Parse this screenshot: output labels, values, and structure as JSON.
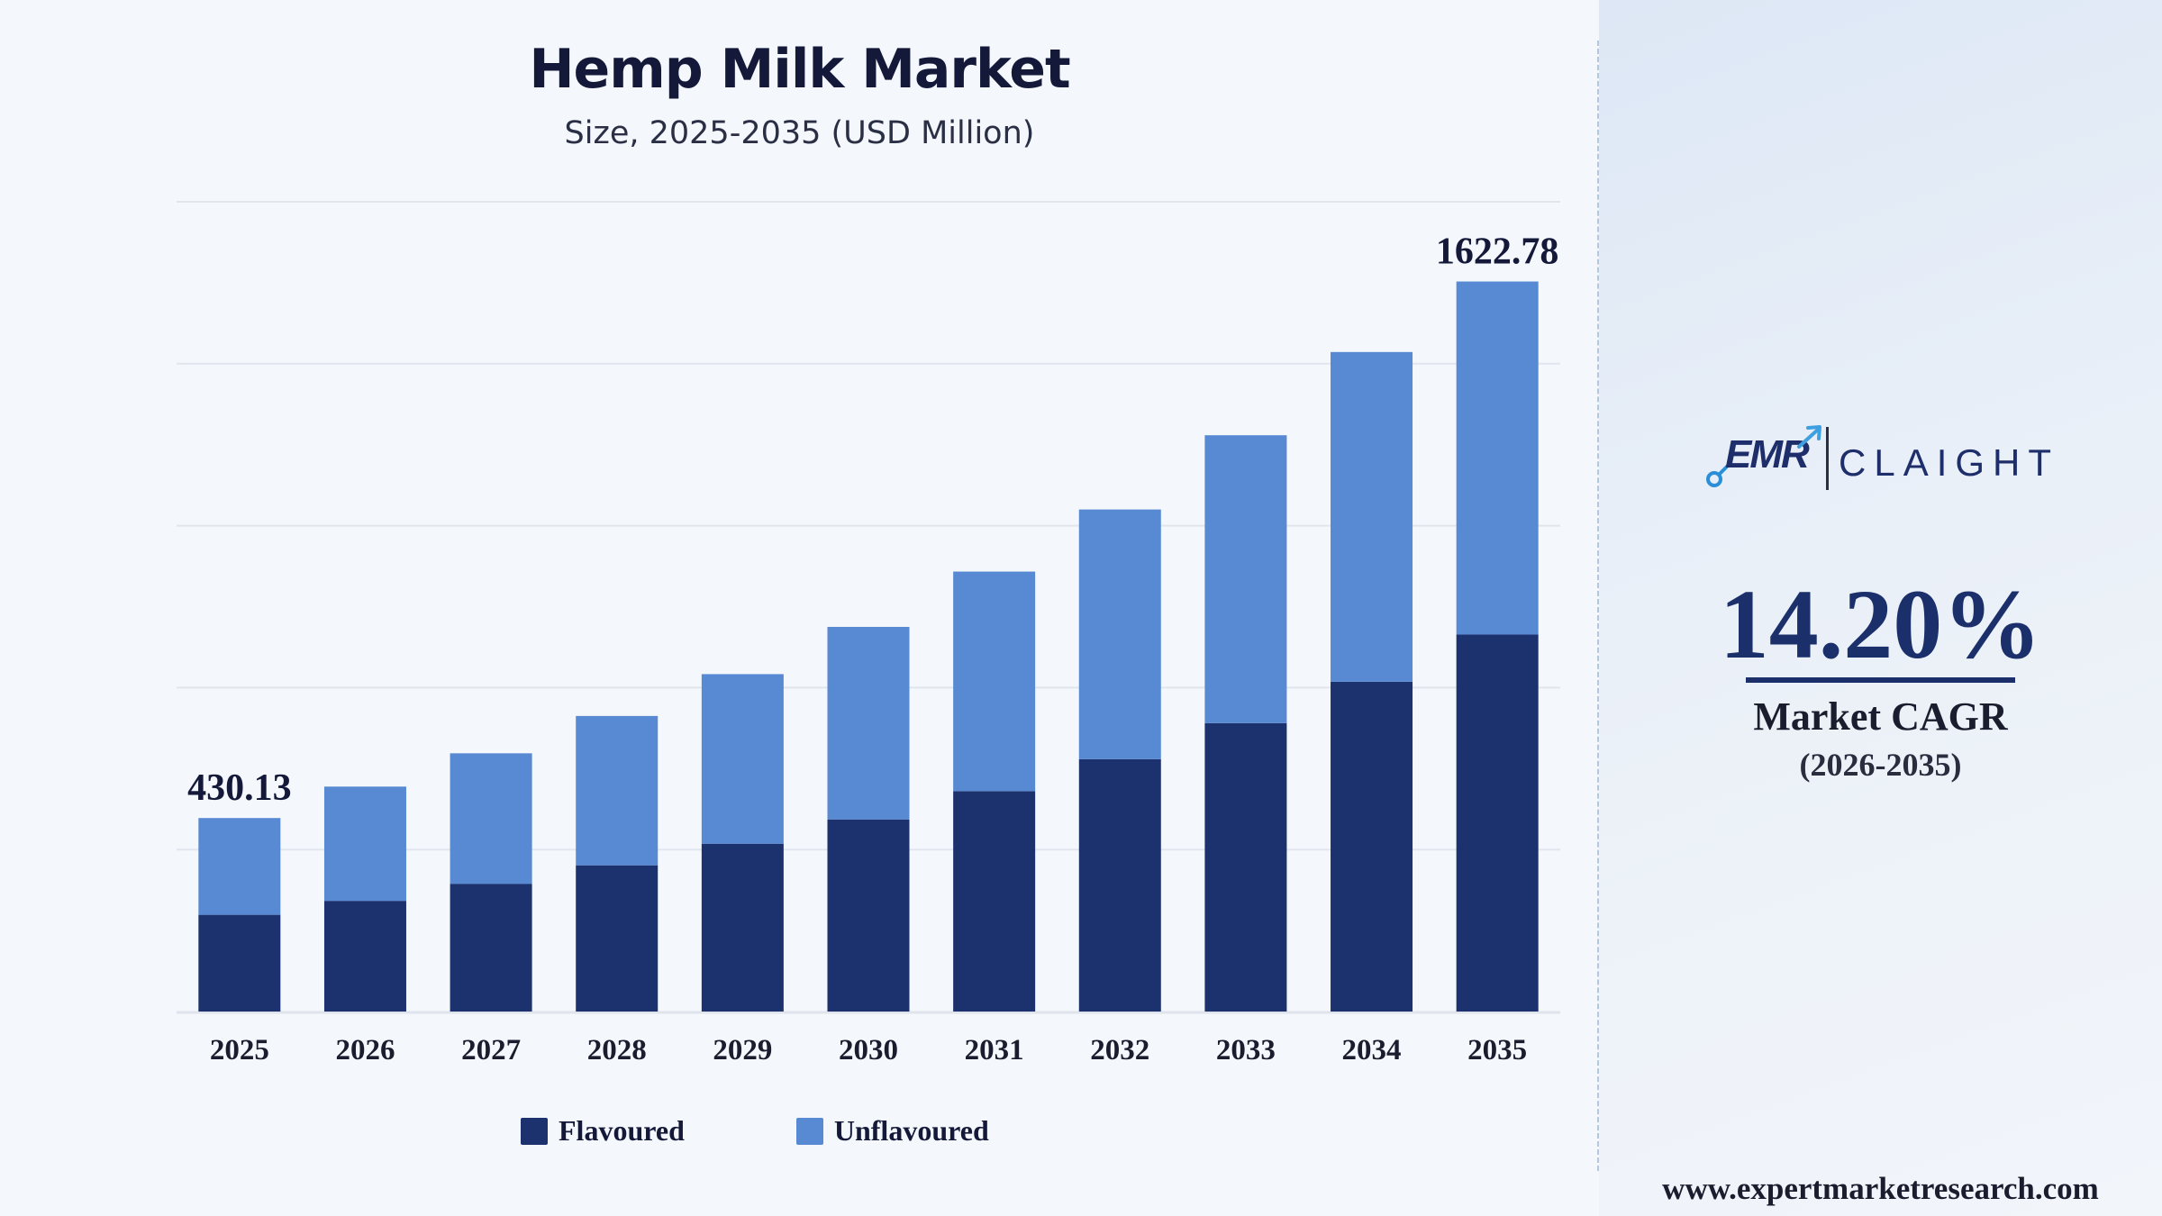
{
  "chart_data": {
    "type": "bar",
    "stacked": true,
    "title": "Hemp Milk Market",
    "subtitle": "Size, 2025-2035 (USD Million)",
    "categories": [
      "2025",
      "2026",
      "2027",
      "2028",
      "2029",
      "2030",
      "2031",
      "2032",
      "2033",
      "2034",
      "2035"
    ],
    "series": [
      {
        "name": "Flavoured",
        "color": "#1c326e",
        "values": [
          215,
          246,
          284,
          325,
          373,
          427,
          490,
          561,
          641,
          733,
          838
        ]
      },
      {
        "name": "Unflavoured",
        "color": "#5889d3",
        "values": [
          215.13,
          254,
          290,
          332,
          377,
          428,
          488,
          555,
          640,
          733,
          784.78
        ]
      }
    ],
    "totals": [
      430.13,
      500,
      574,
      657,
      750,
      855,
      978,
      1116,
      1281,
      1466,
      1622.78
    ],
    "data_labels": [
      {
        "category": "2025",
        "text": "430.13"
      },
      {
        "category": "2035",
        "text": "1622.78"
      }
    ],
    "ylim": [
      0,
      1800
    ],
    "gridlines": true,
    "legend_position": "bottom"
  },
  "side": {
    "logo_emr": "EMR",
    "logo_claight": "CLAIGHT",
    "cagr_value": "14.20%",
    "cagr_label": "Market CAGR",
    "cagr_period": "(2026-2035)",
    "website": "www.expertmarketresearch.com"
  }
}
